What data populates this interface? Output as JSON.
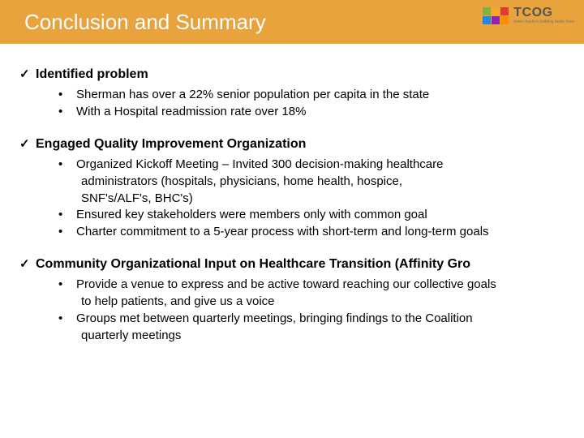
{
  "header": {
    "title": "Conclusion and Summary",
    "bar_color": "#e8a33d",
    "title_color": "#ffffff",
    "title_fontsize": 26
  },
  "logo": {
    "main": "TCOG",
    "tagline": "better leaders building better lives",
    "square_colors": [
      "#7cb342",
      "#f9a825",
      "#e53935",
      "#1e88e5",
      "#8e24aa",
      "#fb8c00"
    ]
  },
  "sections": [
    {
      "title": "Identified problem",
      "items": [
        {
          "text": "Sherman has over a 22% senior population per capita in the state"
        },
        {
          "text": "With a Hospital readmission rate over 18%"
        }
      ]
    },
    {
      "title": "Engaged Quality Improvement Organization",
      "items": [
        {
          "text": "Organized Kickoff Meeting – Invited 300 decision-making healthcare",
          "cont": [
            "administrators (hospitals, physicians, home health, hospice,",
            "SNF's/ALF's, BHC's)"
          ]
        },
        {
          "text": "Ensured key stakeholders were members only with common goal"
        },
        {
          "text": "Charter commitment to a 5-year process with short-term and long-term goals"
        }
      ]
    },
    {
      "title": "Community Organizational Input on Healthcare Transition (Affinity Gro",
      "items": [
        {
          "text": "Provide a venue to express and be active toward reaching our collective goals",
          "cont": [
            "to help patients, and give us a voice"
          ]
        },
        {
          "text": "Groups met between quarterly meetings, bringing findings to the Coalition",
          "cont2": [
            "quarterly meetings"
          ]
        }
      ]
    }
  ],
  "style": {
    "body_fontsize": 15,
    "heading_fontsize": 16,
    "text_color": "#000000",
    "background_color": "#ffffff"
  }
}
